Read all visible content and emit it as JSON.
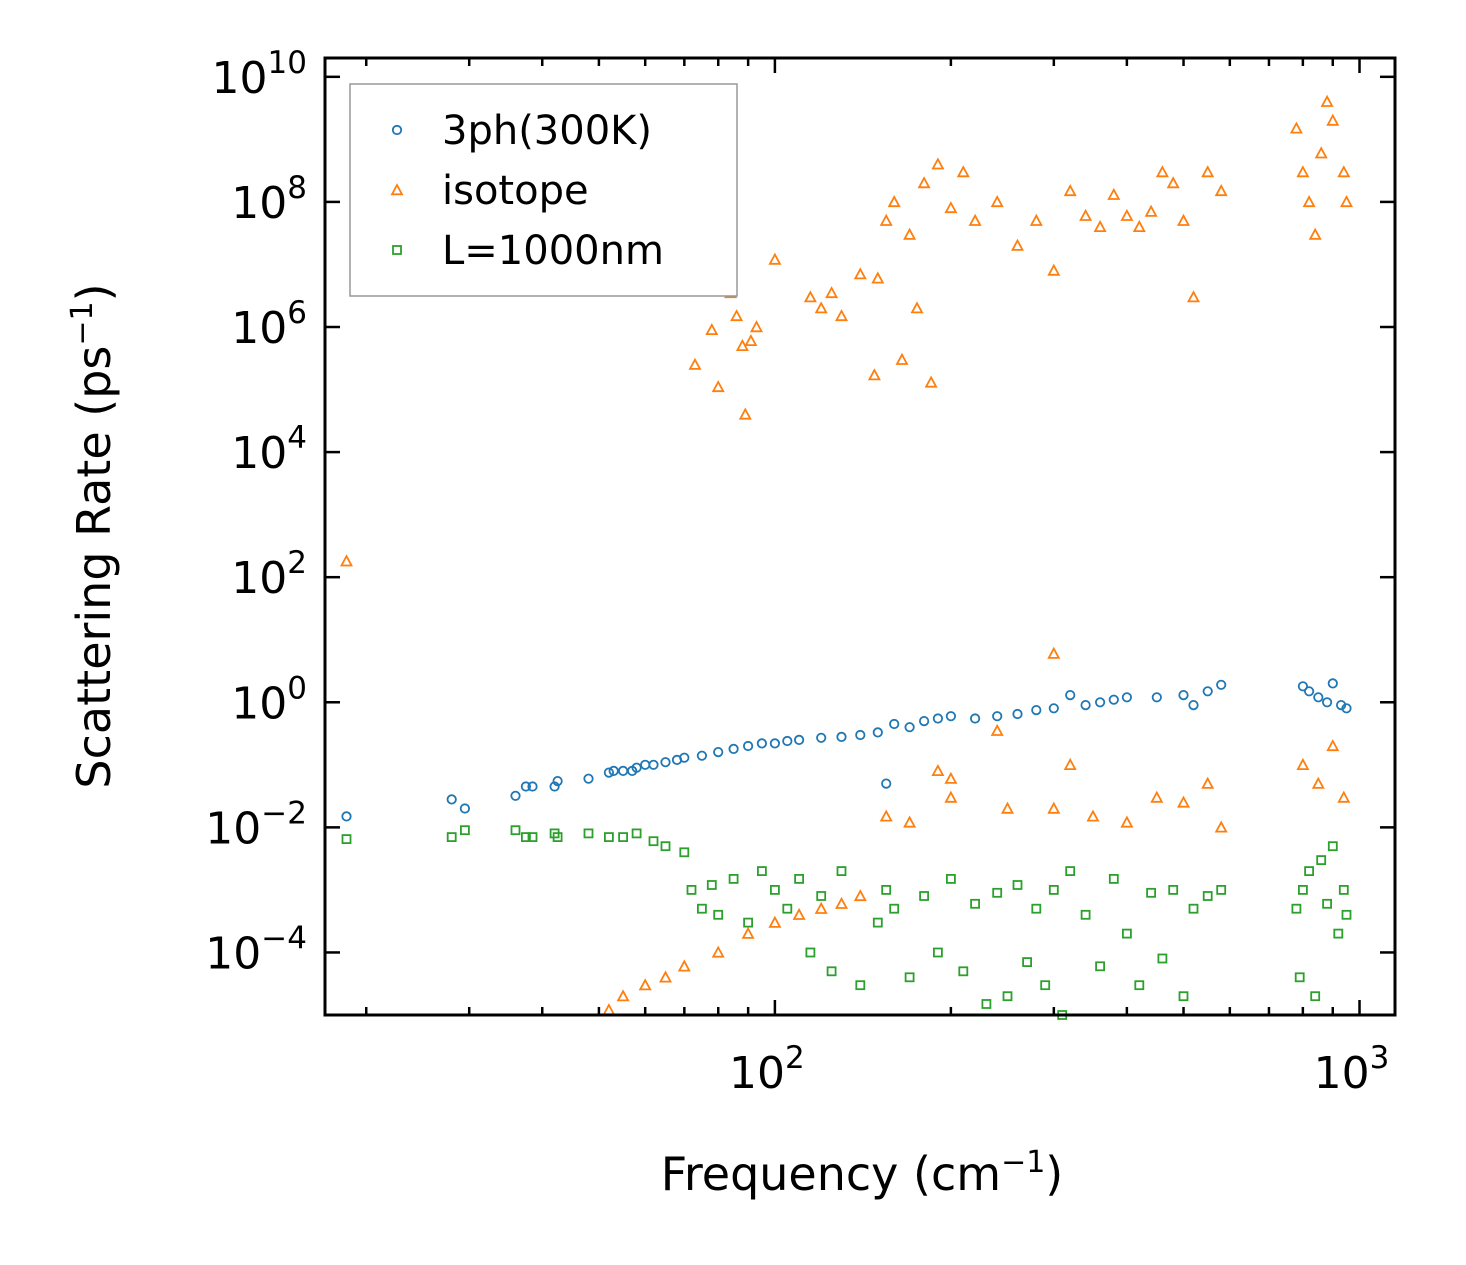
{
  "chart_data": {
    "type": "scatter",
    "xscale": "log",
    "yscale": "log",
    "xlim": [
      17,
      1150
    ],
    "ylim": [
      1e-05,
      20000000000.0
    ],
    "xlabel": {
      "main": "Frequency (cm",
      "sup": "−1",
      "close": ")"
    },
    "ylabel": {
      "main": "Scattering Rate (ps",
      "sup": "−1",
      "close": ")"
    },
    "x_ticks": [
      {
        "value": 100,
        "base": "10",
        "exp": "2"
      },
      {
        "value": 1000,
        "base": "10",
        "exp": "3"
      }
    ],
    "y_ticks": [
      {
        "value": 10000000000.0,
        "base": "10",
        "exp": "10"
      },
      {
        "value": 100000000.0,
        "base": "10",
        "exp": "8"
      },
      {
        "value": 1000000.0,
        "base": "10",
        "exp": "6"
      },
      {
        "value": 10000.0,
        "base": "10",
        "exp": "4"
      },
      {
        "value": 100.0,
        "base": "10",
        "exp": "2"
      },
      {
        "value": 1,
        "base": "10",
        "exp": "0"
      },
      {
        "value": 0.01,
        "base": "10",
        "exp": "−2"
      },
      {
        "value": 0.0001,
        "base": "10",
        "exp": "−4"
      }
    ],
    "legend_position": "top-left",
    "series": [
      {
        "name": "3ph(300K)",
        "marker": "circle",
        "color": "#1f77b4",
        "points": [
          [
            18.5,
            0.015
          ],
          [
            28,
            0.028
          ],
          [
            29.5,
            0.02
          ],
          [
            36,
            0.032
          ],
          [
            37.5,
            0.045
          ],
          [
            38.5,
            0.045
          ],
          [
            42,
            0.045
          ],
          [
            42.5,
            0.055
          ],
          [
            48,
            0.06
          ],
          [
            52,
            0.075
          ],
          [
            53,
            0.08
          ],
          [
            55,
            0.08
          ],
          [
            57,
            0.08
          ],
          [
            58,
            0.09
          ],
          [
            60,
            0.1
          ],
          [
            62,
            0.1
          ],
          [
            65,
            0.11
          ],
          [
            68,
            0.12
          ],
          [
            70,
            0.13
          ],
          [
            75,
            0.14
          ],
          [
            80,
            0.16
          ],
          [
            85,
            0.18
          ],
          [
            90,
            0.2
          ],
          [
            95,
            0.22
          ],
          [
            100,
            0.22
          ],
          [
            105,
            0.24
          ],
          [
            110,
            0.25
          ],
          [
            120,
            0.27
          ],
          [
            130,
            0.28
          ],
          [
            140,
            0.3
          ],
          [
            150,
            0.33
          ],
          [
            155,
            0.05
          ],
          [
            160,
            0.45
          ],
          [
            170,
            0.4
          ],
          [
            180,
            0.5
          ],
          [
            190,
            0.55
          ],
          [
            200,
            0.6
          ],
          [
            220,
            0.55
          ],
          [
            240,
            0.6
          ],
          [
            260,
            0.65
          ],
          [
            280,
            0.75
          ],
          [
            300,
            0.8
          ],
          [
            320,
            1.3
          ],
          [
            340,
            0.9
          ],
          [
            360,
            1.0
          ],
          [
            380,
            1.1
          ],
          [
            400,
            1.2
          ],
          [
            450,
            1.2
          ],
          [
            500,
            1.3
          ],
          [
            520,
            0.9
          ],
          [
            550,
            1.5
          ],
          [
            580,
            1.9
          ],
          [
            800,
            1.8
          ],
          [
            820,
            1.5
          ],
          [
            850,
            1.2
          ],
          [
            880,
            1.0
          ],
          [
            900,
            2.0
          ],
          [
            930,
            0.9
          ],
          [
            950,
            0.8
          ]
        ]
      },
      {
        "name": "isotope",
        "marker": "triangle",
        "color": "#ff7f0e",
        "points": [
          [
            18.5,
            180
          ],
          [
            73,
            250000
          ],
          [
            78,
            900000
          ],
          [
            80,
            110000
          ],
          [
            84,
            3500000
          ],
          [
            86,
            1500000
          ],
          [
            88,
            500000
          ],
          [
            89,
            40000
          ],
          [
            91,
            600000
          ],
          [
            93,
            1000000
          ],
          [
            100,
            12000000
          ],
          [
            115,
            3000000
          ],
          [
            120,
            2000000
          ],
          [
            125,
            3500000
          ],
          [
            130,
            1500000
          ],
          [
            140,
            7000000
          ],
          [
            148,
            170000
          ],
          [
            150,
            6000000
          ],
          [
            155,
            50000000
          ],
          [
            160,
            100000000
          ],
          [
            165,
            300000
          ],
          [
            170,
            30000000
          ],
          [
            175,
            2000000
          ],
          [
            180,
            200000000
          ],
          [
            185,
            130000
          ],
          [
            190,
            400000000
          ],
          [
            200,
            80000000
          ],
          [
            210,
            300000000
          ],
          [
            220,
            50000000
          ],
          [
            240,
            100000000
          ],
          [
            260,
            20000000
          ],
          [
            280,
            50000000
          ],
          [
            300,
            8000000
          ],
          [
            320,
            150000000
          ],
          [
            340,
            60000000
          ],
          [
            360,
            40000000
          ],
          [
            380,
            130000000
          ],
          [
            400,
            60000000
          ],
          [
            420,
            40000000
          ],
          [
            440,
            70000000
          ],
          [
            460,
            300000000
          ],
          [
            480,
            200000000
          ],
          [
            500,
            50000000
          ],
          [
            520,
            3000000
          ],
          [
            550,
            300000000
          ],
          [
            580,
            150000000
          ],
          [
            780,
            1500000000
          ],
          [
            800,
            300000000
          ],
          [
            820,
            100000000
          ],
          [
            840,
            30000000
          ],
          [
            860,
            600000000
          ],
          [
            880,
            4000000000
          ],
          [
            900,
            2000000000
          ],
          [
            940,
            300000000
          ],
          [
            950,
            100000000
          ],
          [
            300,
            6
          ],
          [
            155,
            0.015
          ],
          [
            170,
            0.012
          ],
          [
            200,
            0.03
          ],
          [
            250,
            0.02
          ],
          [
            300,
            0.02
          ],
          [
            350,
            0.015
          ],
          [
            400,
            0.012
          ],
          [
            450,
            0.03
          ],
          [
            500,
            0.025
          ],
          [
            550,
            0.05
          ],
          [
            580,
            0.01
          ],
          [
            800,
            0.1
          ],
          [
            850,
            0.05
          ],
          [
            900,
            0.2
          ],
          [
            940,
            0.03
          ],
          [
            70,
            6e-05
          ],
          [
            65,
            4e-05
          ],
          [
            60,
            3e-05
          ],
          [
            55,
            2e-05
          ],
          [
            52,
            1.2e-05
          ],
          [
            80,
            0.0001
          ],
          [
            90,
            0.0002
          ],
          [
            100,
            0.0003
          ],
          [
            110,
            0.0004
          ],
          [
            120,
            0.0005
          ],
          [
            130,
            0.0006
          ],
          [
            140,
            0.0008
          ],
          [
            240,
            0.35
          ],
          [
            320,
            0.1
          ],
          [
            190,
            0.08
          ],
          [
            200,
            0.06
          ]
        ]
      },
      {
        "name": "L=1000nm",
        "marker": "square",
        "color": "#2ca02c",
        "points": [
          [
            18.5,
            0.0065
          ],
          [
            28,
            0.007
          ],
          [
            29.5,
            0.009
          ],
          [
            36,
            0.009
          ],
          [
            37.5,
            0.007
          ],
          [
            38.5,
            0.007
          ],
          [
            42,
            0.008
          ],
          [
            42.5,
            0.007
          ],
          [
            48,
            0.008
          ],
          [
            52,
            0.007
          ],
          [
            55,
            0.007
          ],
          [
            58,
            0.008
          ],
          [
            62,
            0.006
          ],
          [
            65,
            0.005
          ],
          [
            70,
            0.004
          ],
          [
            72,
            0.001
          ],
          [
            75,
            0.0005
          ],
          [
            78,
            0.0012
          ],
          [
            80,
            0.0004
          ],
          [
            85,
            0.0015
          ],
          [
            90,
            0.0003
          ],
          [
            95,
            0.002
          ],
          [
            100,
            0.001
          ],
          [
            105,
            0.0005
          ],
          [
            110,
            0.0015
          ],
          [
            115,
            0.0001
          ],
          [
            120,
            0.0008
          ],
          [
            125,
            5e-05
          ],
          [
            130,
            0.002
          ],
          [
            140,
            3e-05
          ],
          [
            150,
            0.0003
          ],
          [
            155,
            0.001
          ],
          [
            160,
            0.0005
          ],
          [
            170,
            4e-05
          ],
          [
            180,
            0.0008
          ],
          [
            190,
            0.0001
          ],
          [
            200,
            0.0015
          ],
          [
            210,
            5e-05
          ],
          [
            220,
            0.0006
          ],
          [
            230,
            1.5e-05
          ],
          [
            240,
            0.0009
          ],
          [
            250,
            2e-05
          ],
          [
            260,
            0.0012
          ],
          [
            270,
            7e-05
          ],
          [
            280,
            0.0005
          ],
          [
            290,
            3e-05
          ],
          [
            300,
            0.001
          ],
          [
            310,
            1e-05
          ],
          [
            320,
            0.002
          ],
          [
            340,
            0.0004
          ],
          [
            360,
            6e-05
          ],
          [
            380,
            0.0015
          ],
          [
            400,
            0.0002
          ],
          [
            420,
            3e-05
          ],
          [
            440,
            0.0009
          ],
          [
            460,
            8e-05
          ],
          [
            480,
            0.001
          ],
          [
            500,
            2e-05
          ],
          [
            520,
            0.0005
          ],
          [
            550,
            0.0008
          ],
          [
            580,
            0.001
          ],
          [
            780,
            0.0005
          ],
          [
            790,
            4e-05
          ],
          [
            800,
            0.001
          ],
          [
            820,
            0.002
          ],
          [
            840,
            2e-05
          ],
          [
            860,
            0.003
          ],
          [
            880,
            0.0006
          ],
          [
            900,
            0.005
          ],
          [
            920,
            0.0002
          ],
          [
            940,
            0.001
          ],
          [
            950,
            0.0004
          ]
        ]
      }
    ]
  }
}
